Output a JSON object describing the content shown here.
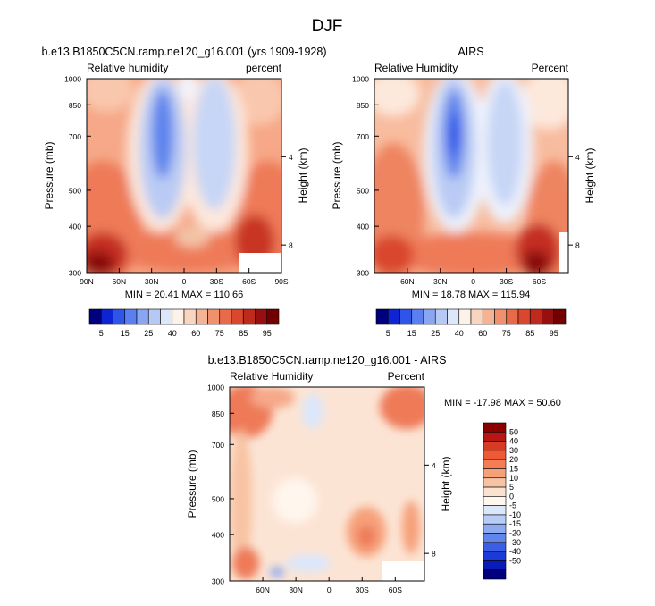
{
  "figure_title": "DJF",
  "panels": [
    {
      "title": "b.e13.B1850C5CN.ramp.ne120_g16.001 (yrs 1909-1928)",
      "left_label": "Relative humidity",
      "right_label": "percent",
      "ylabel": "Pressure (mb)",
      "ylabel_right": "Height (km)",
      "y_ticks": [
        "300",
        "400",
        "500",
        "700",
        "850",
        "1000"
      ],
      "height_ticks": [
        "8",
        "4"
      ],
      "x_ticks": [
        "90N",
        "60N",
        "30N",
        "0",
        "30S",
        "60S",
        "90S"
      ],
      "stats": "MIN = 20.41  MAX = 110.66"
    },
    {
      "title": "AIRS",
      "left_label": "Relative Humidity",
      "right_label": "Percent",
      "ylabel": "Pressure (mb)",
      "ylabel_right": "Height (km)",
      "y_ticks": [
        "300",
        "400",
        "500",
        "700",
        "850",
        "1000"
      ],
      "height_ticks": [
        "8",
        "4"
      ],
      "x_ticks": [
        "60N",
        "30N",
        "0",
        "30S",
        "60S"
      ],
      "stats": "MIN = 18.78  MAX = 115.94"
    },
    {
      "title": "b.e13.B1850C5CN.ramp.ne120_g16.001 - AIRS",
      "left_label": "Relative Humidity",
      "right_label": "Percent",
      "ylabel": "Pressure (mb)",
      "ylabel_right": "Height (km)",
      "y_ticks": [
        "300",
        "400",
        "500",
        "700",
        "850",
        "1000"
      ],
      "height_ticks": [
        "8",
        "4"
      ],
      "x_ticks": [
        "60N",
        "30N",
        "0",
        "30S",
        "60S"
      ],
      "stats": "MIN = -17.98  MAX =  50.60"
    }
  ],
  "colorbar_rh": {
    "labels": [
      "5",
      "15",
      "25",
      "40",
      "60",
      "75",
      "85",
      "95"
    ],
    "colors": [
      "#00007f",
      "#0c24d2",
      "#2f54e8",
      "#5a7ff0",
      "#8aa6f2",
      "#b6c9f5",
      "#dde7fa",
      "#fdf1e8",
      "#f9d4be",
      "#f5b394",
      "#f0906c",
      "#e86a48",
      "#d9472d",
      "#bf2a1c",
      "#980f0f",
      "#730000"
    ]
  },
  "colorbar_diff": {
    "labels": [
      "50",
      "40",
      "30",
      "20",
      "15",
      "10",
      "5",
      "0",
      "-5",
      "-10",
      "-15",
      "-20",
      "-30",
      "-40",
      "-50"
    ],
    "colors": [
      "#8a0000",
      "#b81515",
      "#d93a24",
      "#ee5a35",
      "#f47d55",
      "#f6a079",
      "#f8c3a3",
      "#fbe2d0",
      "#fff6ee",
      "#dbe7fb",
      "#b7ccf6",
      "#8eaaf0",
      "#6185ea",
      "#3b5fe4",
      "#1c3ad8",
      "#0a1cb8",
      "#00007f"
    ]
  },
  "chart_data": [
    {
      "type": "heatmap",
      "title": "b.e13.B1850C5CN.ramp.ne120_g16.001 (yrs 1909-1928)",
      "variable": "Relative humidity",
      "units": "percent",
      "ylabel": "Pressure (mb)",
      "xlim": [
        "90N",
        "90S"
      ],
      "ylim": [
        1000,
        300
      ],
      "min": 20.41,
      "max": 110.66
    },
    {
      "type": "heatmap",
      "title": "AIRS",
      "variable": "Relative Humidity",
      "units": "Percent",
      "ylabel": "Pressure (mb)",
      "ylim": [
        1000,
        300
      ],
      "min": 18.78,
      "max": 115.94
    },
    {
      "type": "heatmap",
      "title": "b.e13.B1850C5CN.ramp.ne120_g16.001 - AIRS",
      "variable": "Relative Humidity",
      "units": "Percent",
      "ylabel": "Pressure (mb)",
      "ylim": [
        1000,
        300
      ],
      "min": -17.98,
      "max": 50.6
    }
  ]
}
